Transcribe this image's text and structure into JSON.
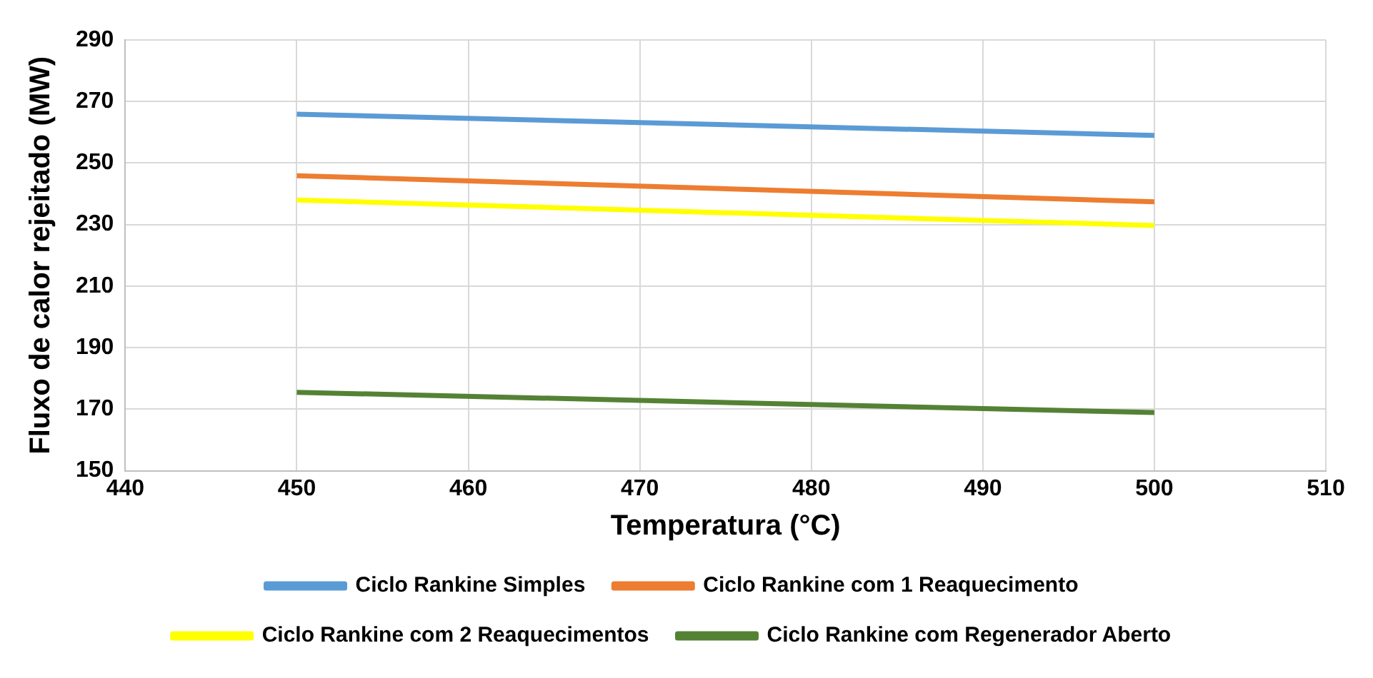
{
  "chart_data": {
    "type": "line",
    "xlabel": "Temperatura (°C)",
    "ylabel": "Fluxo de calor rejeitado (MW)",
    "xlim": [
      440,
      510
    ],
    "xticks": [
      440,
      450,
      460,
      470,
      480,
      490,
      500,
      510
    ],
    "ylim": [
      150,
      290
    ],
    "yticks": [
      150,
      170,
      190,
      210,
      230,
      250,
      270,
      290
    ],
    "grid": true,
    "legend": "bottom",
    "marker": "none",
    "line_style": "solid",
    "x": [
      450,
      500
    ],
    "series": [
      {
        "name": "Ciclo Rankine Simples",
        "color": "#5b9bd5",
        "values": [
          265.9,
          259
        ]
      },
      {
        "name": "Ciclo Rankine com 1 Reaquecimento",
        "color": "#ed7d31",
        "values": [
          245.9,
          237.4
        ]
      },
      {
        "name": "Ciclo Rankine com 2 Reaquecimentos",
        "color": "#ffff00",
        "values": [
          238,
          229.7
        ]
      },
      {
        "name": "Ciclo Rankine com Regenerador Aberto",
        "color": "#548235",
        "values": [
          175.5,
          168.9
        ]
      }
    ]
  }
}
